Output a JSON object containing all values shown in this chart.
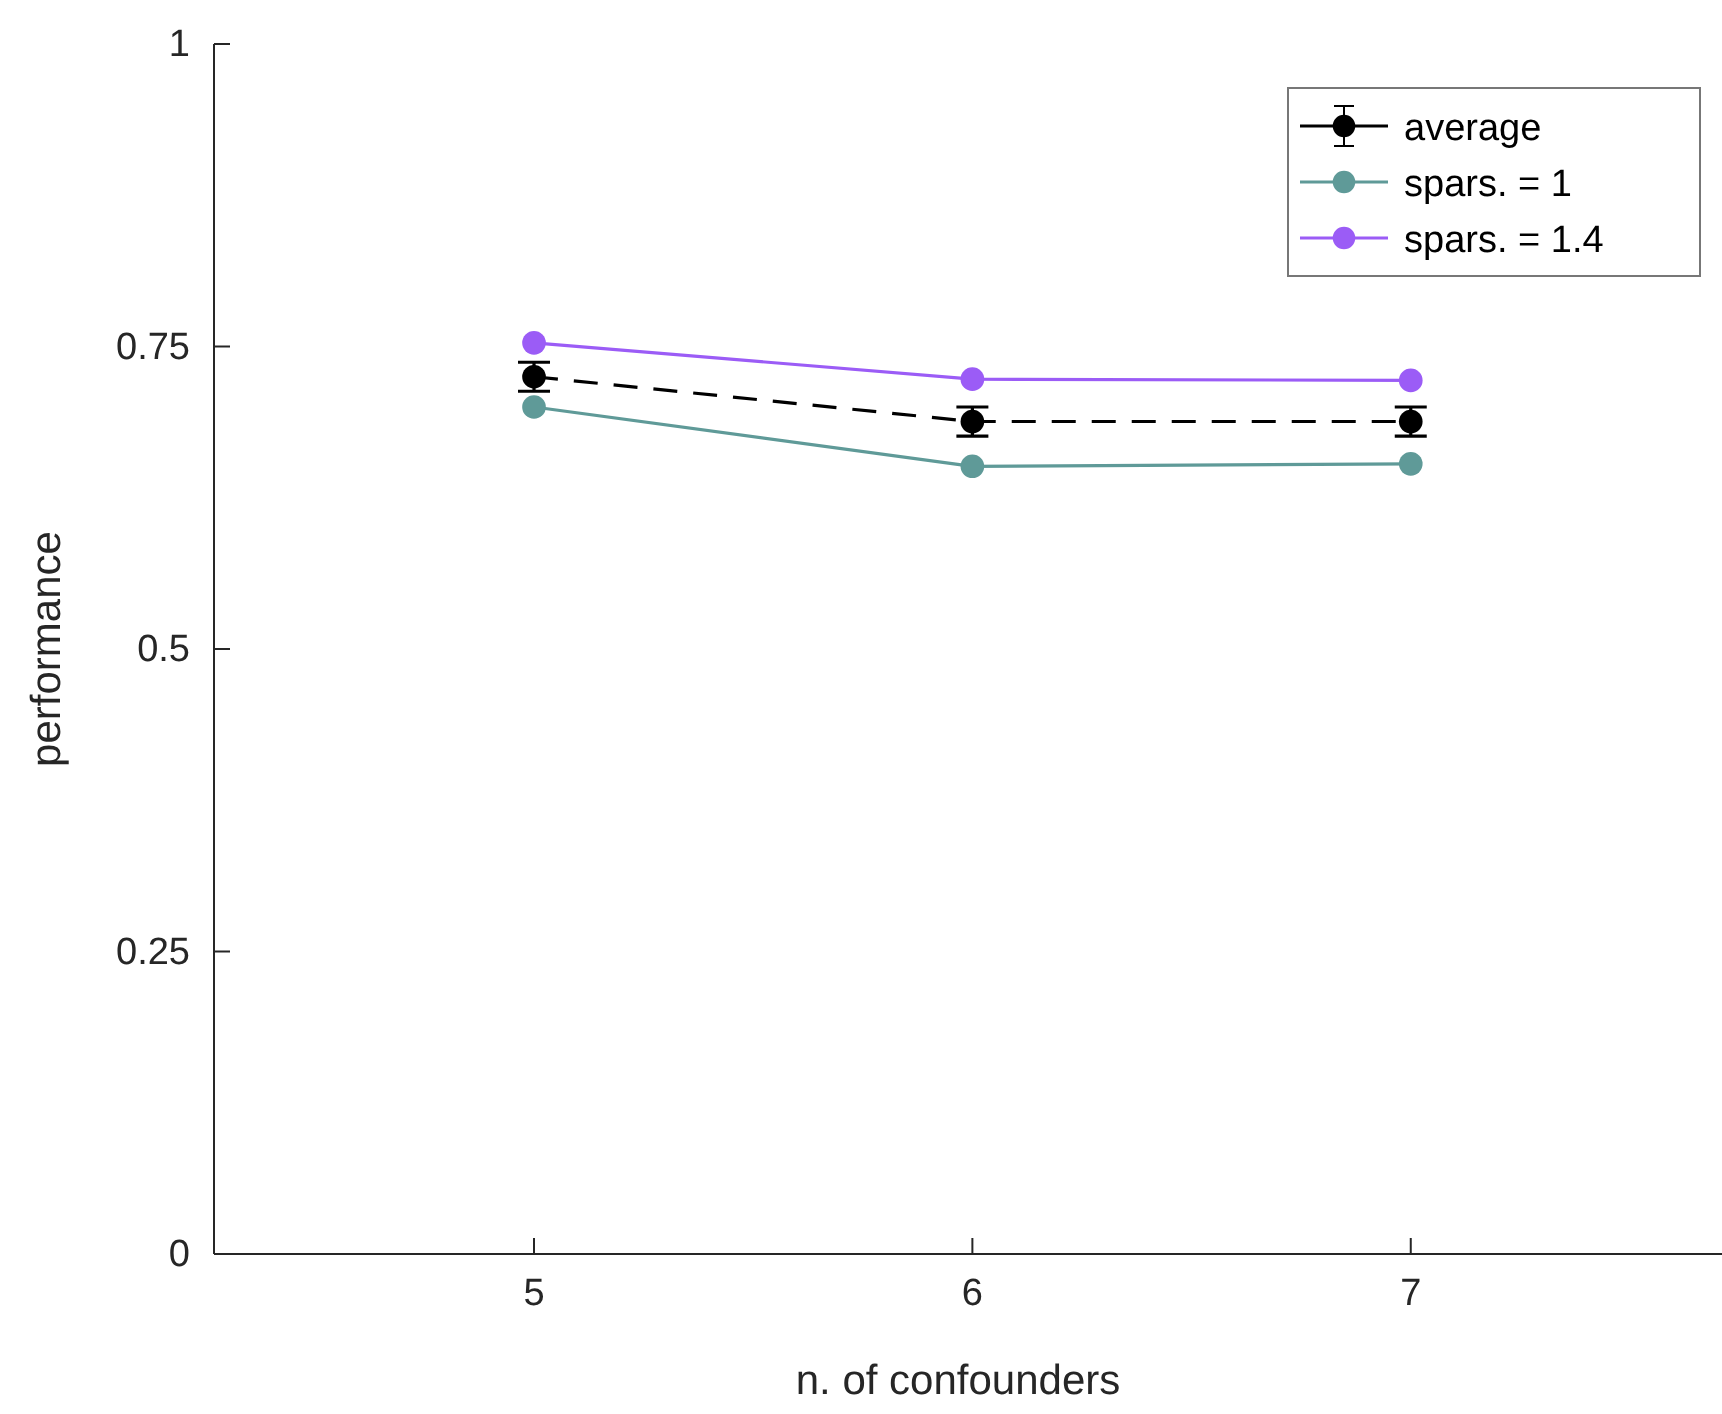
{
  "chart_data": {
    "type": "line",
    "xlabel": "n. of confounders",
    "ylabel": "performance",
    "x": [
      5,
      6,
      7
    ],
    "xlim": [
      4.27,
      7.71
    ],
    "xticks": [
      5,
      6,
      7
    ],
    "ylim": [
      0,
      1
    ],
    "yticks": [
      0,
      {
        "value": 0.25,
        "label": "0.25"
      },
      {
        "value": 0.5,
        "label": "0.5"
      },
      {
        "value": 0.75,
        "label": "0.75"
      },
      1
    ],
    "marker": "circle",
    "legend": "top right",
    "series": [
      {
        "name": "average",
        "color": "#000000",
        "values": [
          0.725,
          0.688,
          0.688
        ],
        "errors": [
          0.012,
          0.012,
          0.012
        ],
        "line_style": "dashed"
      },
      {
        "name": "spars. = 1",
        "color": "#5f9a98",
        "values": [
          0.7,
          0.651,
          0.653
        ],
        "line_style": "solid"
      },
      {
        "name": "spars. = 1.4",
        "color": "#9b5cf6",
        "values": [
          0.753,
          0.723,
          0.722
        ],
        "line_style": "solid"
      }
    ]
  }
}
